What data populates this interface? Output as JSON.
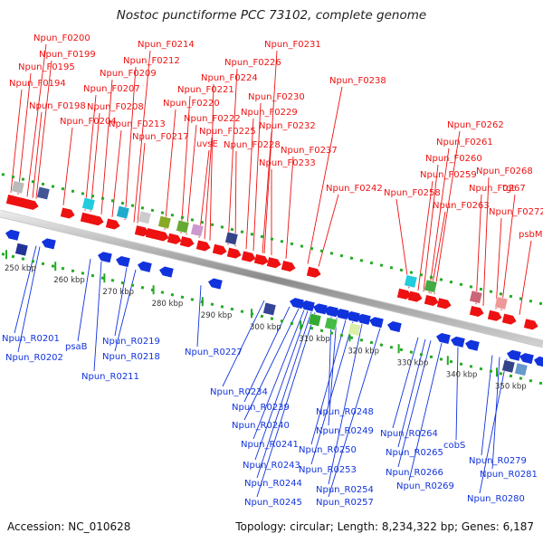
{
  "title": "Nostoc punctiforme PCC 73102, complete genome",
  "footer": {
    "accession_label": "Accession:",
    "accession": "NC_010628",
    "topology_label": "Topology:",
    "topology": "circular",
    "length_label": "Length:",
    "length": "8,234,322 bp",
    "genes_label": "Genes:",
    "genes": "6,187"
  },
  "colors": {
    "forward": "#ee1111",
    "reverse": "#1133dd",
    "backbone": "#9a9a9a",
    "tick": "#22aa22"
  },
  "kbp_labels": [
    {
      "kbp": 250,
      "text": "250 kbp"
    },
    {
      "kbp": 260,
      "text": "260 kbp"
    },
    {
      "kbp": 270,
      "text": "270 kbp"
    },
    {
      "kbp": 280,
      "text": "280 kbp"
    },
    {
      "kbp": 290,
      "text": "290 kbp"
    },
    {
      "kbp": 300,
      "text": "300 kbp"
    },
    {
      "kbp": 310,
      "text": "310 kbp"
    },
    {
      "kbp": 320,
      "text": "320 kbp"
    },
    {
      "kbp": 330,
      "text": "330 kbp"
    },
    {
      "kbp": 340,
      "text": "340 kbp"
    },
    {
      "kbp": 350,
      "text": "350 kbp"
    }
  ],
  "forward_genes": [
    {
      "name": "Npun_F0200"
    },
    {
      "name": "Npun_F0199"
    },
    {
      "name": "Npun_F0195"
    },
    {
      "name": "Npun_F0194"
    },
    {
      "name": "Npun_F0198"
    },
    {
      "name": "Npun_F0214"
    },
    {
      "name": "Npun_F0212"
    },
    {
      "name": "Npun_F0209"
    },
    {
      "name": "Npun_F0207"
    },
    {
      "name": "Npun_F0208"
    },
    {
      "name": "Npun_F0204"
    },
    {
      "name": "Npun_F0213"
    },
    {
      "name": "Npun_F0217"
    },
    {
      "name": "Npun_F0220"
    },
    {
      "name": "Npun_F0221"
    },
    {
      "name": "Npun_F0222"
    },
    {
      "name": "uvsE"
    },
    {
      "name": "Npun_F0225"
    },
    {
      "name": "Npun_F0226"
    },
    {
      "name": "Npun_F0224"
    },
    {
      "name": "Npun_F0228"
    },
    {
      "name": "Npun_F0231"
    },
    {
      "name": "Npun_F0230"
    },
    {
      "name": "Npun_F0229"
    },
    {
      "name": "Npun_F0232"
    },
    {
      "name": "Npun_F0233"
    },
    {
      "name": "Npun_F0237"
    },
    {
      "name": "Npun_F0238"
    },
    {
      "name": "Npun_F0242"
    },
    {
      "name": "Npun_F0262"
    },
    {
      "name": "Npun_F0261"
    },
    {
      "name": "Npun_F0260"
    },
    {
      "name": "Npun_F0259"
    },
    {
      "name": "Npun_F0258"
    },
    {
      "name": "Npun_F0263"
    },
    {
      "name": "Npun_F0268"
    },
    {
      "name": "Npun_F0267"
    },
    {
      "name": "tgt"
    },
    {
      "name": "Npun_F0272"
    },
    {
      "name": "psbM"
    }
  ],
  "reverse_genes": [
    {
      "name": "Npun_R0201"
    },
    {
      "name": "Npun_R0202"
    },
    {
      "name": "psaB"
    },
    {
      "name": "Npun_R0211"
    },
    {
      "name": "Npun_R0219"
    },
    {
      "name": "Npun_R0218"
    },
    {
      "name": "Npun_R0227"
    },
    {
      "name": "Npun_R0234"
    },
    {
      "name": "Npun_R0239"
    },
    {
      "name": "Npun_R0240"
    },
    {
      "name": "Npun_R0241"
    },
    {
      "name": "Npun_R0243"
    },
    {
      "name": "Npun_R0244"
    },
    {
      "name": "Npun_R0245"
    },
    {
      "name": "Npun_R0248"
    },
    {
      "name": "Npun_R0249"
    },
    {
      "name": "Npun_R0250"
    },
    {
      "name": "Npun_R0253"
    },
    {
      "name": "Npun_R0254"
    },
    {
      "name": "Npun_R0257"
    },
    {
      "name": "Npun_R0264"
    },
    {
      "name": "Npun_R0265"
    },
    {
      "name": "Npun_R0266"
    },
    {
      "name": "Npun_R0269"
    },
    {
      "name": "cobS"
    },
    {
      "name": "Npun_R0279"
    },
    {
      "name": "Npun_R0281"
    },
    {
      "name": "Npun_R0280"
    }
  ]
}
